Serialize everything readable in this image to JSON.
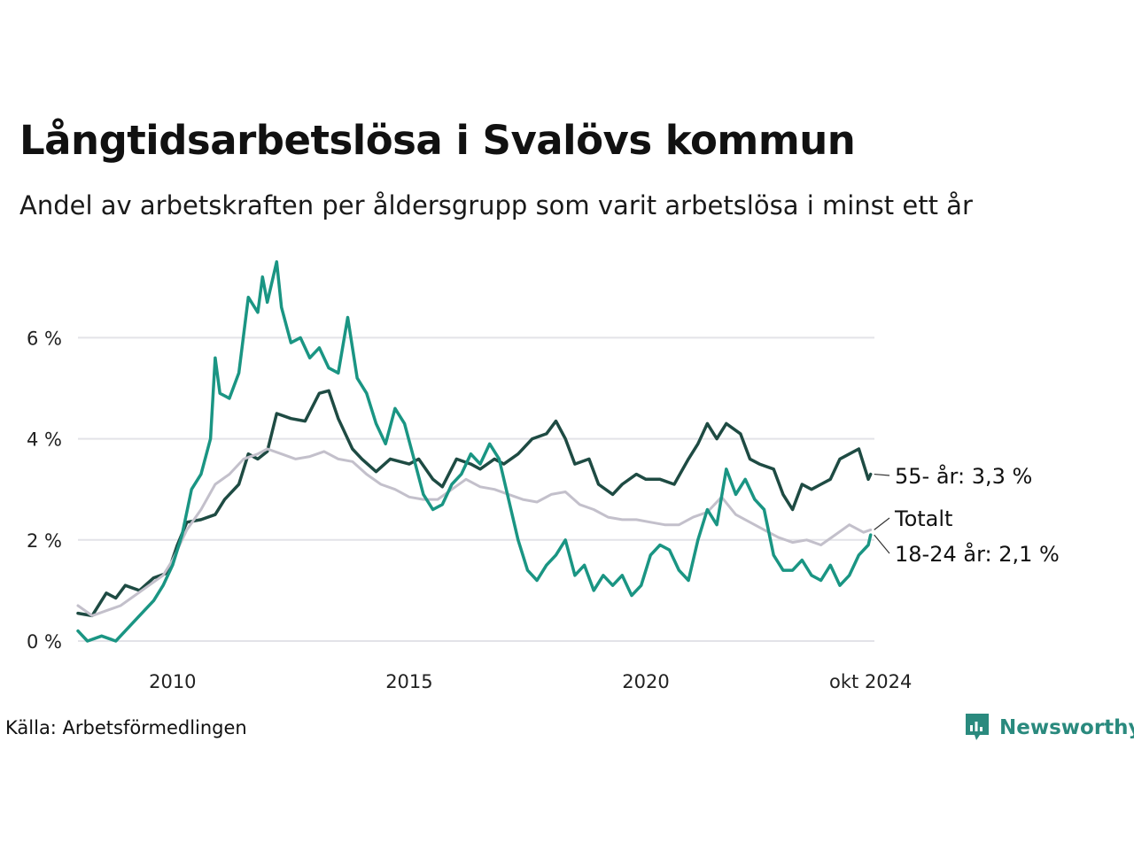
{
  "header": {
    "title": "Långtidsarbetslösa i Svalövs kommun",
    "subtitle": "Andel av arbetskraften per åldersgrupp som varit arbetslösa i minst ett år"
  },
  "footer": {
    "source": "Källa: Arbetsförmedlingen",
    "brand": "Newsworthy"
  },
  "colors": {
    "age_55": "#1e4b43",
    "age_18_24": "#1a9583",
    "total": "#c3c0cb",
    "grid": "#e3e3e8",
    "brand": "#2a8a7e"
  },
  "chart_data": {
    "type": "line",
    "x_unit": "year",
    "xlim": [
      2008.0,
      2024.83
    ],
    "ylim": [
      0,
      7.6
    ],
    "grid": "horizontal",
    "y_ticks": [
      0,
      2,
      4,
      6
    ],
    "y_tick_labels": [
      "0 %",
      "2 %",
      "4 %",
      "6 %"
    ],
    "x_ticks": [
      2010,
      2015,
      2020,
      2024.75
    ],
    "x_tick_labels": [
      "2010",
      "2015",
      "2020",
      "okt 2024"
    ],
    "series": [
      {
        "name": "55- år",
        "label": "55- år: 3,3 %",
        "color_key": "age_55",
        "points": [
          [
            2008.0,
            0.55
          ],
          [
            2008.3,
            0.5
          ],
          [
            2008.6,
            0.95
          ],
          [
            2008.8,
            0.85
          ],
          [
            2009.0,
            1.1
          ],
          [
            2009.3,
            1.0
          ],
          [
            2009.6,
            1.25
          ],
          [
            2009.9,
            1.35
          ],
          [
            2010.1,
            1.9
          ],
          [
            2010.3,
            2.35
          ],
          [
            2010.6,
            2.4
          ],
          [
            2010.9,
            2.5
          ],
          [
            2011.1,
            2.8
          ],
          [
            2011.4,
            3.1
          ],
          [
            2011.6,
            3.7
          ],
          [
            2011.8,
            3.6
          ],
          [
            2012.0,
            3.75
          ],
          [
            2012.2,
            4.5
          ],
          [
            2012.5,
            4.4
          ],
          [
            2012.8,
            4.35
          ],
          [
            2013.1,
            4.9
          ],
          [
            2013.3,
            4.95
          ],
          [
            2013.5,
            4.4
          ],
          [
            2013.8,
            3.8
          ],
          [
            2014.0,
            3.6
          ],
          [
            2014.3,
            3.35
          ],
          [
            2014.6,
            3.6
          ],
          [
            2015.0,
            3.5
          ],
          [
            2015.2,
            3.6
          ],
          [
            2015.5,
            3.2
          ],
          [
            2015.7,
            3.05
          ],
          [
            2016.0,
            3.6
          ],
          [
            2016.3,
            3.5
          ],
          [
            2016.5,
            3.4
          ],
          [
            2016.8,
            3.6
          ],
          [
            2017.0,
            3.5
          ],
          [
            2017.3,
            3.7
          ],
          [
            2017.6,
            4.0
          ],
          [
            2017.9,
            4.1
          ],
          [
            2018.1,
            4.35
          ],
          [
            2018.3,
            4.0
          ],
          [
            2018.5,
            3.5
          ],
          [
            2018.8,
            3.6
          ],
          [
            2019.0,
            3.1
          ],
          [
            2019.3,
            2.9
          ],
          [
            2019.5,
            3.1
          ],
          [
            2019.8,
            3.3
          ],
          [
            2020.0,
            3.2
          ],
          [
            2020.3,
            3.2
          ],
          [
            2020.6,
            3.1
          ],
          [
            2020.9,
            3.6
          ],
          [
            2021.1,
            3.9
          ],
          [
            2021.3,
            4.3
          ],
          [
            2021.5,
            4.0
          ],
          [
            2021.7,
            4.3
          ],
          [
            2022.0,
            4.1
          ],
          [
            2022.2,
            3.6
          ],
          [
            2022.4,
            3.5
          ],
          [
            2022.7,
            3.4
          ],
          [
            2022.9,
            2.9
          ],
          [
            2023.1,
            2.6
          ],
          [
            2023.3,
            3.1
          ],
          [
            2023.5,
            3.0
          ],
          [
            2023.7,
            3.1
          ],
          [
            2023.9,
            3.2
          ],
          [
            2024.1,
            3.6
          ],
          [
            2024.3,
            3.7
          ],
          [
            2024.5,
            3.8
          ],
          [
            2024.7,
            3.2
          ],
          [
            2024.75,
            3.3
          ]
        ]
      },
      {
        "name": "Totalt",
        "label": "Totalt",
        "color_key": "total",
        "points": [
          [
            2008.0,
            0.7
          ],
          [
            2008.3,
            0.5
          ],
          [
            2008.6,
            0.6
          ],
          [
            2008.9,
            0.7
          ],
          [
            2009.2,
            0.9
          ],
          [
            2009.5,
            1.1
          ],
          [
            2009.8,
            1.3
          ],
          [
            2010.0,
            1.6
          ],
          [
            2010.3,
            2.2
          ],
          [
            2010.6,
            2.6
          ],
          [
            2010.9,
            3.1
          ],
          [
            2011.2,
            3.3
          ],
          [
            2011.5,
            3.6
          ],
          [
            2011.8,
            3.7
          ],
          [
            2012.0,
            3.8
          ],
          [
            2012.3,
            3.7
          ],
          [
            2012.6,
            3.6
          ],
          [
            2012.9,
            3.65
          ],
          [
            2013.2,
            3.75
          ],
          [
            2013.5,
            3.6
          ],
          [
            2013.8,
            3.55
          ],
          [
            2014.1,
            3.3
          ],
          [
            2014.4,
            3.1
          ],
          [
            2014.7,
            3.0
          ],
          [
            2015.0,
            2.85
          ],
          [
            2015.3,
            2.8
          ],
          [
            2015.6,
            2.8
          ],
          [
            2015.9,
            3.0
          ],
          [
            2016.2,
            3.2
          ],
          [
            2016.5,
            3.05
          ],
          [
            2016.8,
            3.0
          ],
          [
            2017.1,
            2.9
          ],
          [
            2017.4,
            2.8
          ],
          [
            2017.7,
            2.75
          ],
          [
            2018.0,
            2.9
          ],
          [
            2018.3,
            2.95
          ],
          [
            2018.6,
            2.7
          ],
          [
            2018.9,
            2.6
          ],
          [
            2019.2,
            2.45
          ],
          [
            2019.5,
            2.4
          ],
          [
            2019.8,
            2.4
          ],
          [
            2020.1,
            2.35
          ],
          [
            2020.4,
            2.3
          ],
          [
            2020.7,
            2.3
          ],
          [
            2021.0,
            2.45
          ],
          [
            2021.3,
            2.55
          ],
          [
            2021.6,
            2.85
          ],
          [
            2021.9,
            2.5
          ],
          [
            2022.2,
            2.35
          ],
          [
            2022.5,
            2.2
          ],
          [
            2022.8,
            2.05
          ],
          [
            2023.1,
            1.95
          ],
          [
            2023.4,
            2.0
          ],
          [
            2023.7,
            1.9
          ],
          [
            2024.0,
            2.1
          ],
          [
            2024.3,
            2.3
          ],
          [
            2024.6,
            2.15
          ],
          [
            2024.75,
            2.2
          ]
        ]
      },
      {
        "name": "18-24 år",
        "label": "18-24 år: 2,1 %",
        "color_key": "age_18_24",
        "points": [
          [
            2008.0,
            0.2
          ],
          [
            2008.2,
            0.0
          ],
          [
            2008.5,
            0.1
          ],
          [
            2008.8,
            0.0
          ],
          [
            2009.0,
            0.2
          ],
          [
            2009.3,
            0.5
          ],
          [
            2009.6,
            0.8
          ],
          [
            2009.8,
            1.1
          ],
          [
            2010.0,
            1.5
          ],
          [
            2010.2,
            2.1
          ],
          [
            2010.4,
            3.0
          ],
          [
            2010.6,
            3.3
          ],
          [
            2010.8,
            4.0
          ],
          [
            2010.9,
            5.6
          ],
          [
            2011.0,
            4.9
          ],
          [
            2011.2,
            4.8
          ],
          [
            2011.4,
            5.3
          ],
          [
            2011.6,
            6.8
          ],
          [
            2011.8,
            6.5
          ],
          [
            2011.9,
            7.2
          ],
          [
            2012.0,
            6.7
          ],
          [
            2012.2,
            7.5
          ],
          [
            2012.3,
            6.6
          ],
          [
            2012.5,
            5.9
          ],
          [
            2012.7,
            6.0
          ],
          [
            2012.9,
            5.6
          ],
          [
            2013.1,
            5.8
          ],
          [
            2013.3,
            5.4
          ],
          [
            2013.5,
            5.3
          ],
          [
            2013.7,
            6.4
          ],
          [
            2013.9,
            5.2
          ],
          [
            2014.1,
            4.9
          ],
          [
            2014.3,
            4.3
          ],
          [
            2014.5,
            3.9
          ],
          [
            2014.7,
            4.6
          ],
          [
            2014.9,
            4.3
          ],
          [
            2015.1,
            3.6
          ],
          [
            2015.3,
            2.9
          ],
          [
            2015.5,
            2.6
          ],
          [
            2015.7,
            2.7
          ],
          [
            2015.9,
            3.1
          ],
          [
            2016.1,
            3.3
          ],
          [
            2016.3,
            3.7
          ],
          [
            2016.5,
            3.5
          ],
          [
            2016.7,
            3.9
          ],
          [
            2016.9,
            3.6
          ],
          [
            2017.1,
            2.8
          ],
          [
            2017.3,
            2.0
          ],
          [
            2017.5,
            1.4
          ],
          [
            2017.7,
            1.2
          ],
          [
            2017.9,
            1.5
          ],
          [
            2018.1,
            1.7
          ],
          [
            2018.3,
            2.0
          ],
          [
            2018.5,
            1.3
          ],
          [
            2018.7,
            1.5
          ],
          [
            2018.9,
            1.0
          ],
          [
            2019.1,
            1.3
          ],
          [
            2019.3,
            1.1
          ],
          [
            2019.5,
            1.3
          ],
          [
            2019.7,
            0.9
          ],
          [
            2019.9,
            1.1
          ],
          [
            2020.1,
            1.7
          ],
          [
            2020.3,
            1.9
          ],
          [
            2020.5,
            1.8
          ],
          [
            2020.7,
            1.4
          ],
          [
            2020.9,
            1.2
          ],
          [
            2021.1,
            2.0
          ],
          [
            2021.3,
            2.6
          ],
          [
            2021.5,
            2.3
          ],
          [
            2021.7,
            3.4
          ],
          [
            2021.9,
            2.9
          ],
          [
            2022.1,
            3.2
          ],
          [
            2022.3,
            2.8
          ],
          [
            2022.5,
            2.6
          ],
          [
            2022.7,
            1.7
          ],
          [
            2022.9,
            1.4
          ],
          [
            2023.1,
            1.4
          ],
          [
            2023.3,
            1.6
          ],
          [
            2023.5,
            1.3
          ],
          [
            2023.7,
            1.2
          ],
          [
            2023.9,
            1.5
          ],
          [
            2024.1,
            1.1
          ],
          [
            2024.3,
            1.3
          ],
          [
            2024.5,
            1.7
          ],
          [
            2024.7,
            1.9
          ],
          [
            2024.75,
            2.1
          ]
        ]
      }
    ]
  }
}
